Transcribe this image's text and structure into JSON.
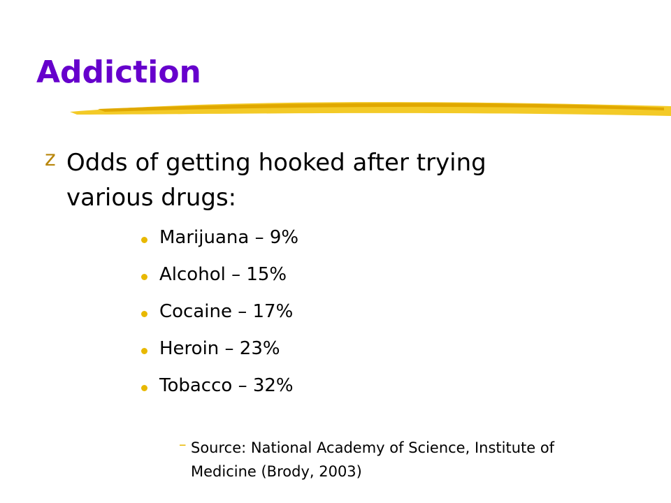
{
  "header": {
    "title": "Addiction"
  },
  "main_point": {
    "marker": "z",
    "text": "Odds of getting hooked after trying various drugs:"
  },
  "items": [
    "Marijuana – 9%",
    "Alcohol – 15%",
    "Cocaine – 17%",
    "Heroin – 23%",
    "Tobacco – 32%"
  ],
  "source": {
    "marker": "–",
    "text": "Source: National Academy of Science, Institute of Medicine (Brody, 2003)"
  }
}
